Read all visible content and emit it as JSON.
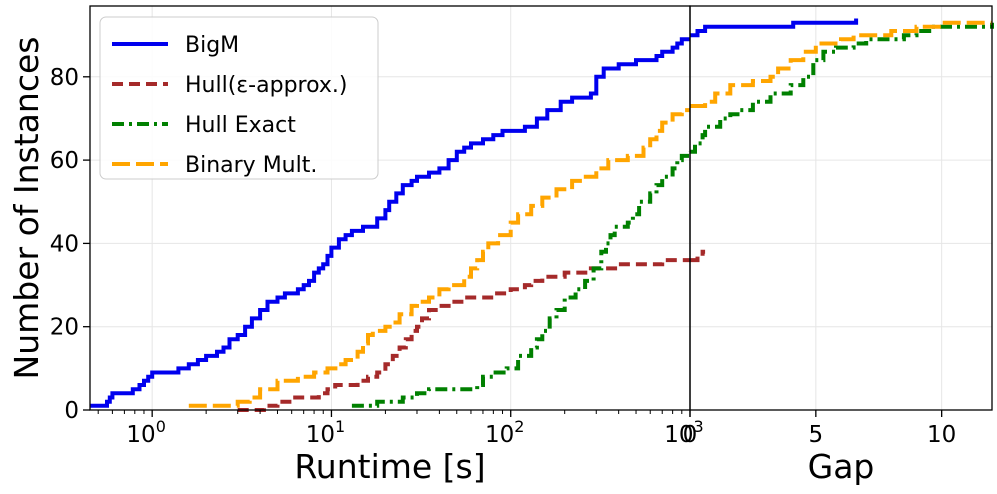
{
  "chart_data": {
    "type": "line",
    "title": "",
    "ylabel": "Number of Instances",
    "ylim": [
      0,
      97
    ],
    "yticks": [
      "0",
      "20",
      "40",
      "60",
      "80"
    ],
    "ytick_values": [
      0,
      20,
      40,
      60,
      80
    ],
    "grid": true,
    "legend_position": "top-left",
    "panels": {
      "runtime": {
        "xlabel": "Runtime [s]",
        "xscale": "log",
        "xlim": [
          0.45,
          1000
        ],
        "xticks": [
          {
            "value": 1,
            "base": "10",
            "exp": "0"
          },
          {
            "value": 10,
            "base": "10",
            "exp": "1"
          },
          {
            "value": 100,
            "base": "10",
            "exp": "2"
          },
          {
            "value": 1000,
            "base": "10",
            "exp": "3"
          }
        ]
      },
      "gap": {
        "xlabel": "Gap",
        "xscale": "linear",
        "xlim": [
          0,
          12
        ],
        "xticks": [
          {
            "value": 0,
            "label": "0"
          },
          {
            "value": 5,
            "label": "5"
          },
          {
            "value": 10,
            "label": "10"
          }
        ]
      }
    },
    "series": [
      {
        "name": "BigM",
        "color": "#0000ee",
        "dash": "solid",
        "runtime": [
          [
            0.45,
            1
          ],
          [
            0.55,
            1
          ],
          [
            0.56,
            2
          ],
          [
            0.58,
            3
          ],
          [
            0.6,
            4
          ],
          [
            0.75,
            4
          ],
          [
            0.78,
            5
          ],
          [
            0.85,
            6
          ],
          [
            0.9,
            7
          ],
          [
            0.95,
            8
          ],
          [
            1.0,
            9
          ],
          [
            1.3,
            9
          ],
          [
            1.4,
            10
          ],
          [
            1.6,
            11
          ],
          [
            1.8,
            12
          ],
          [
            2.0,
            13
          ],
          [
            2.3,
            14
          ],
          [
            2.5,
            15
          ],
          [
            2.7,
            17
          ],
          [
            3.0,
            18
          ],
          [
            3.3,
            20
          ],
          [
            3.6,
            22
          ],
          [
            4.0,
            24
          ],
          [
            4.4,
            26
          ],
          [
            5.0,
            27
          ],
          [
            5.5,
            28
          ],
          [
            6.5,
            29
          ],
          [
            7.0,
            30
          ],
          [
            7.5,
            31
          ],
          [
            8.0,
            33
          ],
          [
            8.5,
            34
          ],
          [
            9.0,
            35
          ],
          [
            9.5,
            37
          ],
          [
            10.0,
            39
          ],
          [
            11.0,
            41
          ],
          [
            12.0,
            42
          ],
          [
            13.0,
            43
          ],
          [
            15.0,
            44
          ],
          [
            17.0,
            44
          ],
          [
            18.0,
            46
          ],
          [
            20.0,
            48
          ],
          [
            21.0,
            50
          ],
          [
            23.0,
            52
          ],
          [
            25.0,
            54
          ],
          [
            28.0,
            55
          ],
          [
            30.0,
            56
          ],
          [
            35.0,
            57
          ],
          [
            40.0,
            58
          ],
          [
            45.0,
            60
          ],
          [
            50.0,
            62
          ],
          [
            55.0,
            63
          ],
          [
            60.0,
            64
          ],
          [
            70.0,
            65
          ],
          [
            80.0,
            66
          ],
          [
            90.0,
            67
          ],
          [
            120.0,
            68
          ],
          [
            140.0,
            70
          ],
          [
            160.0,
            72
          ],
          [
            190.0,
            74
          ],
          [
            220.0,
            75
          ],
          [
            280.0,
            76
          ],
          [
            300.0,
            80
          ],
          [
            330.0,
            82
          ],
          [
            400.0,
            83
          ],
          [
            500.0,
            84
          ],
          [
            650.0,
            85
          ],
          [
            700.0,
            86
          ],
          [
            800.0,
            87
          ],
          [
            850.0,
            88
          ],
          [
            900.0,
            89
          ],
          [
            1000.0,
            89
          ]
        ],
        "gap": [
          [
            0,
            90
          ],
          [
            0.3,
            91
          ],
          [
            0.6,
            92
          ],
          [
            4.0,
            92
          ],
          [
            4.1,
            93
          ],
          [
            6.6,
            93
          ],
          [
            6.6,
            94
          ]
        ]
      },
      {
        "name": "Hull(ε-approx.)",
        "color": "#a52a2a",
        "dash": "dashed",
        "runtime": [
          [
            3.0,
            0
          ],
          [
            4.0,
            0
          ],
          [
            4.2,
            1
          ],
          [
            5.0,
            2
          ],
          [
            6.0,
            3
          ],
          [
            7.0,
            3
          ],
          [
            8.5,
            4
          ],
          [
            9.5,
            5
          ],
          [
            10.5,
            6
          ],
          [
            13.0,
            6
          ],
          [
            14.0,
            7
          ],
          [
            16.0,
            8
          ],
          [
            18.0,
            9
          ],
          [
            20.0,
            11
          ],
          [
            22.0,
            13
          ],
          [
            24.0,
            15
          ],
          [
            26.0,
            17
          ],
          [
            28.0,
            19
          ],
          [
            30.0,
            20
          ],
          [
            32.0,
            22
          ],
          [
            35.0,
            24
          ],
          [
            40.0,
            25
          ],
          [
            45.0,
            26
          ],
          [
            55.0,
            27
          ],
          [
            70.0,
            27
          ],
          [
            80.0,
            28
          ],
          [
            100.0,
            29
          ],
          [
            120.0,
            30
          ],
          [
            130.0,
            31
          ],
          [
            150.0,
            32
          ],
          [
            200.0,
            33
          ],
          [
            280.0,
            34
          ],
          [
            350.0,
            34
          ],
          [
            400.0,
            35
          ],
          [
            600.0,
            35
          ],
          [
            700.0,
            36
          ],
          [
            1000.0,
            36
          ]
        ],
        "gap": [
          [
            0,
            36
          ],
          [
            0.3,
            37
          ],
          [
            0.5,
            38
          ],
          [
            0.6,
            38
          ]
        ]
      },
      {
        "name": "Hull Exact",
        "color": "#008000",
        "dash": "dashdot",
        "runtime": [
          [
            13.0,
            1
          ],
          [
            18.0,
            2
          ],
          [
            25.0,
            3
          ],
          [
            30.0,
            4
          ],
          [
            35.0,
            5
          ],
          [
            60.0,
            5
          ],
          [
            65.0,
            6
          ],
          [
            70.0,
            8
          ],
          [
            80.0,
            9
          ],
          [
            95.0,
            10
          ],
          [
            110.0,
            13
          ],
          [
            130.0,
            15
          ],
          [
            140.0,
            17
          ],
          [
            150.0,
            19
          ],
          [
            165.0,
            22
          ],
          [
            180.0,
            24
          ],
          [
            200.0,
            27
          ],
          [
            230.0,
            29
          ],
          [
            260.0,
            31
          ],
          [
            290.0,
            34
          ],
          [
            320.0,
            38
          ],
          [
            340.0,
            40
          ],
          [
            360.0,
            42
          ],
          [
            380.0,
            44
          ],
          [
            450.0,
            45
          ],
          [
            480.0,
            47
          ],
          [
            520.0,
            50
          ],
          [
            600.0,
            52
          ],
          [
            650.0,
            54
          ],
          [
            700.0,
            56
          ],
          [
            800.0,
            58
          ],
          [
            850.0,
            60
          ],
          [
            900.0,
            61
          ],
          [
            1000.0,
            62
          ]
        ],
        "gap": [
          [
            0,
            62
          ],
          [
            0.2,
            64
          ],
          [
            0.5,
            66
          ],
          [
            0.6,
            68
          ],
          [
            1.2,
            70
          ],
          [
            1.6,
            71
          ],
          [
            2.0,
            72
          ],
          [
            2.5,
            74
          ],
          [
            3.2,
            76
          ],
          [
            4.0,
            78
          ],
          [
            4.5,
            80
          ],
          [
            4.9,
            84
          ],
          [
            5.3,
            86
          ],
          [
            5.8,
            87
          ],
          [
            6.5,
            88
          ],
          [
            7.0,
            89
          ],
          [
            8.5,
            90
          ],
          [
            9.0,
            91
          ],
          [
            9.6,
            92
          ],
          [
            12.0,
            93
          ]
        ]
      },
      {
        "name": "Binary Mult.",
        "color": "#ffa500",
        "dash": "longdash",
        "runtime": [
          [
            1.6,
            1
          ],
          [
            2.8,
            1
          ],
          [
            3.0,
            2
          ],
          [
            3.5,
            3
          ],
          [
            4.0,
            5
          ],
          [
            5.0,
            7
          ],
          [
            6.5,
            8
          ],
          [
            8.0,
            9
          ],
          [
            9.5,
            10
          ],
          [
            11.0,
            11
          ],
          [
            12.0,
            12
          ],
          [
            14.0,
            14
          ],
          [
            15.0,
            16
          ],
          [
            16.0,
            18
          ],
          [
            17.0,
            19
          ],
          [
            20.0,
            20
          ],
          [
            22.0,
            21
          ],
          [
            24.0,
            23
          ],
          [
            28.0,
            25
          ],
          [
            30.0,
            26
          ],
          [
            35.0,
            27
          ],
          [
            40.0,
            29
          ],
          [
            45.0,
            30
          ],
          [
            55.0,
            32
          ],
          [
            60.0,
            34
          ],
          [
            65.0,
            36
          ],
          [
            70.0,
            38
          ],
          [
            75.0,
            40
          ],
          [
            85.0,
            42
          ],
          [
            100.0,
            45
          ],
          [
            110.0,
            47
          ],
          [
            130.0,
            49
          ],
          [
            150.0,
            51
          ],
          [
            180.0,
            53
          ],
          [
            220.0,
            55
          ],
          [
            250.0,
            56
          ],
          [
            300.0,
            58
          ],
          [
            350.0,
            60
          ],
          [
            450.0,
            61
          ],
          [
            550.0,
            63
          ],
          [
            600.0,
            65
          ],
          [
            650.0,
            67
          ],
          [
            700.0,
            69
          ],
          [
            800.0,
            71
          ],
          [
            900.0,
            72
          ],
          [
            1000.0,
            72
          ]
        ],
        "gap": [
          [
            0,
            73
          ],
          [
            0.6,
            74
          ],
          [
            1.0,
            76
          ],
          [
            1.6,
            78
          ],
          [
            2.5,
            79
          ],
          [
            3.2,
            80
          ],
          [
            3.5,
            82
          ],
          [
            4.0,
            84
          ],
          [
            4.5,
            86
          ],
          [
            5.0,
            88
          ],
          [
            6.0,
            89
          ],
          [
            6.5,
            90
          ],
          [
            8.0,
            91
          ],
          [
            9.0,
            92
          ],
          [
            10.0,
            93
          ],
          [
            12.0,
            93
          ]
        ]
      }
    ]
  }
}
